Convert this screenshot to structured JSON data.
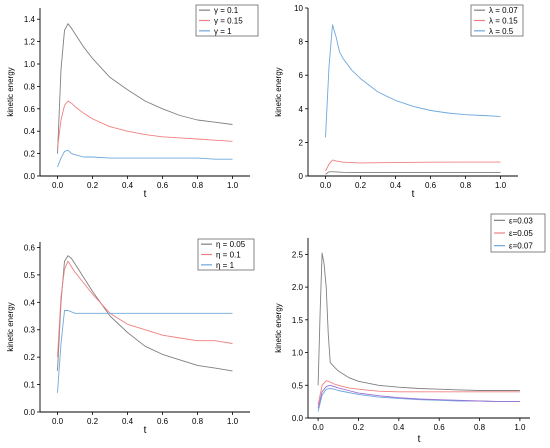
{
  "chart_data": [
    {
      "type": "line",
      "xlabel": "t",
      "ylabel": "kinetic energy",
      "xlim": [
        -0.1,
        1.1
      ],
      "ylim": [
        0,
        1.5
      ],
      "xticks": [
        0.0,
        0.2,
        0.4,
        0.6,
        0.8,
        1.0
      ],
      "yticks": [
        0,
        0.2,
        0.4,
        0.6,
        0.8,
        1.0,
        1.2,
        1.4
      ],
      "xtick_labels": [
        "0.0",
        "0.2",
        "0.4",
        "0.6",
        "0.8",
        "1.0"
      ],
      "ytick_labels": [
        "0.0",
        "0.2",
        "0.4",
        "0.6",
        "0.8",
        "1.0",
        "1.2",
        "1.4"
      ],
      "legend_position": "top-right",
      "grid": false,
      "series": [
        {
          "name": "γ = 0.1",
          "color": "#808080",
          "x": [
            0.0,
            0.02,
            0.04,
            0.06,
            0.08,
            0.1,
            0.15,
            0.2,
            0.3,
            0.4,
            0.5,
            0.6,
            0.7,
            0.8,
            0.9,
            1.0
          ],
          "y": [
            0.2,
            0.95,
            1.3,
            1.36,
            1.32,
            1.27,
            1.15,
            1.05,
            0.88,
            0.77,
            0.67,
            0.6,
            0.54,
            0.5,
            0.48,
            0.46
          ]
        },
        {
          "name": "γ = 0.15",
          "color": "#f08080",
          "x": [
            0.0,
            0.02,
            0.04,
            0.06,
            0.08,
            0.1,
            0.15,
            0.2,
            0.3,
            0.4,
            0.5,
            0.6,
            0.7,
            0.8,
            0.9,
            1.0
          ],
          "y": [
            0.25,
            0.5,
            0.63,
            0.67,
            0.65,
            0.62,
            0.56,
            0.51,
            0.44,
            0.4,
            0.37,
            0.35,
            0.34,
            0.33,
            0.32,
            0.31
          ]
        },
        {
          "name": "γ = 1",
          "color": "#6fa8dc",
          "x": [
            0.0,
            0.02,
            0.04,
            0.06,
            0.08,
            0.1,
            0.15,
            0.2,
            0.3,
            0.4,
            0.5,
            0.6,
            0.7,
            0.8,
            0.9,
            1.0
          ],
          "y": [
            0.08,
            0.16,
            0.22,
            0.23,
            0.2,
            0.19,
            0.17,
            0.17,
            0.16,
            0.16,
            0.16,
            0.16,
            0.16,
            0.16,
            0.15,
            0.15
          ]
        }
      ]
    },
    {
      "type": "line",
      "xlabel": "t",
      "ylabel": "kinetic energy",
      "xlim": [
        -0.1,
        1.1
      ],
      "ylim": [
        0,
        10
      ],
      "xticks": [
        0.0,
        0.2,
        0.4,
        0.6,
        0.8,
        1.0
      ],
      "yticks": [
        0,
        2,
        4,
        6,
        8,
        10
      ],
      "xtick_labels": [
        "0.0",
        "0.2",
        "0.4",
        "0.6",
        "0.8",
        "1.0"
      ],
      "ytick_labels": [
        "0",
        "2",
        "4",
        "6",
        "8",
        "10"
      ],
      "legend_position": "top-right",
      "grid": false,
      "series": [
        {
          "name": "λ = 0.07",
          "color": "#808080",
          "x": [
            0.0,
            0.02,
            0.05,
            0.1,
            0.2,
            0.4,
            0.6,
            0.8,
            1.0
          ],
          "y": [
            0.1,
            0.25,
            0.25,
            0.22,
            0.2,
            0.2,
            0.2,
            0.2,
            0.2
          ]
        },
        {
          "name": "λ = 0.15",
          "color": "#f08080",
          "x": [
            0.0,
            0.02,
            0.04,
            0.06,
            0.1,
            0.2,
            0.4,
            0.6,
            0.8,
            1.0
          ],
          "y": [
            0.3,
            0.7,
            0.95,
            0.9,
            0.82,
            0.78,
            0.8,
            0.82,
            0.83,
            0.83
          ]
        },
        {
          "name": "λ = 0.5",
          "color": "#6fa8dc",
          "x": [
            0.0,
            0.02,
            0.04,
            0.06,
            0.08,
            0.1,
            0.15,
            0.2,
            0.3,
            0.4,
            0.5,
            0.6,
            0.7,
            0.8,
            0.9,
            1.0
          ],
          "y": [
            2.3,
            6.5,
            9.0,
            8.3,
            7.4,
            7.0,
            6.3,
            5.8,
            5.0,
            4.5,
            4.15,
            3.9,
            3.75,
            3.65,
            3.6,
            3.55
          ]
        }
      ]
    },
    {
      "type": "line",
      "xlabel": "t",
      "ylabel": "kinetic energy",
      "xlim": [
        -0.1,
        1.1
      ],
      "ylim": [
        0,
        0.62
      ],
      "xticks": [
        0.0,
        0.2,
        0.4,
        0.6,
        0.8,
        1.0
      ],
      "yticks": [
        0,
        0.1,
        0.2,
        0.3,
        0.4,
        0.5,
        0.6
      ],
      "xtick_labels": [
        "0.0",
        "0.2",
        "0.4",
        "0.6",
        "0.8",
        "1.0"
      ],
      "ytick_labels": [
        "0.0",
        "0.1",
        "0.2",
        "0.3",
        "0.4",
        "0.5",
        "0.6"
      ],
      "legend_position": "top-right",
      "grid": false,
      "series": [
        {
          "name": "η = 0.05",
          "color": "#808080",
          "x": [
            0.0,
            0.02,
            0.04,
            0.06,
            0.08,
            0.1,
            0.15,
            0.2,
            0.3,
            0.4,
            0.5,
            0.6,
            0.7,
            0.8,
            0.9,
            1.0
          ],
          "y": [
            0.15,
            0.4,
            0.55,
            0.57,
            0.56,
            0.54,
            0.49,
            0.44,
            0.35,
            0.29,
            0.24,
            0.21,
            0.19,
            0.17,
            0.16,
            0.15
          ]
        },
        {
          "name": "η = 0.1",
          "color": "#f08080",
          "x": [
            0.0,
            0.02,
            0.04,
            0.06,
            0.08,
            0.1,
            0.15,
            0.2,
            0.3,
            0.4,
            0.5,
            0.6,
            0.7,
            0.8,
            0.9,
            1.0
          ],
          "y": [
            0.2,
            0.42,
            0.52,
            0.55,
            0.53,
            0.51,
            0.47,
            0.43,
            0.36,
            0.32,
            0.3,
            0.28,
            0.27,
            0.26,
            0.26,
            0.25
          ]
        },
        {
          "name": "η = 1",
          "color": "#6fa8dc",
          "x": [
            0.0,
            0.02,
            0.04,
            0.06,
            0.1,
            0.2,
            0.4,
            0.6,
            0.8,
            1.0
          ],
          "y": [
            0.07,
            0.25,
            0.37,
            0.37,
            0.36,
            0.36,
            0.36,
            0.36,
            0.36,
            0.36
          ]
        }
      ]
    },
    {
      "type": "line",
      "xlabel": "t",
      "ylabel": "kinetic energy",
      "xlim": [
        -0.05,
        1.05
      ],
      "ylim": [
        0,
        2.75
      ],
      "xticks": [
        0.0,
        0.2,
        0.4,
        0.6,
        0.8,
        1.0
      ],
      "yticks": [
        0,
        0.5,
        1.0,
        1.5,
        2.0,
        2.5
      ],
      "xtick_labels": [
        "0.0",
        "0.2",
        "0.4",
        "0.6",
        "0.8",
        "1.0"
      ],
      "ytick_labels": [
        "0.0",
        "0.5",
        "1.0",
        "1.5",
        "2.0",
        "2.5"
      ],
      "legend_position": "top-right",
      "grid": false,
      "series": [
        {
          "name": "ε=0.03",
          "color": "#808080",
          "x": [
            0.0,
            0.01,
            0.02,
            0.03,
            0.04,
            0.05,
            0.06,
            0.08,
            0.1,
            0.15,
            0.2,
            0.3,
            0.4,
            0.5,
            0.6,
            0.7,
            0.8,
            0.9,
            1.0
          ],
          "y": [
            0.5,
            1.6,
            2.52,
            2.35,
            2.0,
            1.3,
            0.85,
            0.78,
            0.72,
            0.62,
            0.56,
            0.5,
            0.47,
            0.45,
            0.44,
            0.43,
            0.42,
            0.42,
            0.42
          ]
        },
        {
          "name": "ε=0.05",
          "color": "#f08080",
          "x": [
            0.0,
            0.02,
            0.04,
            0.06,
            0.08,
            0.1,
            0.15,
            0.2,
            0.3,
            0.4,
            0.5,
            0.6,
            0.7,
            0.8,
            0.9,
            1.0
          ],
          "y": [
            0.2,
            0.5,
            0.57,
            0.55,
            0.52,
            0.5,
            0.46,
            0.44,
            0.41,
            0.4,
            0.4,
            0.4,
            0.4,
            0.4,
            0.4,
            0.4
          ]
        },
        {
          "name": "ε=0.07",
          "color": "#6fa8dc",
          "x": [
            0.0,
            0.02,
            0.04,
            0.06,
            0.08,
            0.1,
            0.15,
            0.2,
            0.3,
            0.4,
            0.5,
            0.6,
            0.7,
            0.8,
            0.9,
            1.0
          ],
          "y": [
            0.1,
            0.35,
            0.44,
            0.45,
            0.44,
            0.42,
            0.39,
            0.36,
            0.32,
            0.3,
            0.28,
            0.27,
            0.26,
            0.26,
            0.25,
            0.25
          ]
        },
        {
          "name": "",
          "color": "#9b6fd4",
          "x": [
            0.0,
            0.02,
            0.04,
            0.06,
            0.08,
            0.1,
            0.15,
            0.2,
            0.3,
            0.4,
            0.5,
            0.6,
            0.7,
            0.8,
            0.9,
            1.0
          ],
          "y": [
            0.15,
            0.4,
            0.48,
            0.5,
            0.48,
            0.46,
            0.42,
            0.38,
            0.34,
            0.31,
            0.29,
            0.28,
            0.27,
            0.26,
            0.25,
            0.25
          ]
        }
      ]
    }
  ]
}
